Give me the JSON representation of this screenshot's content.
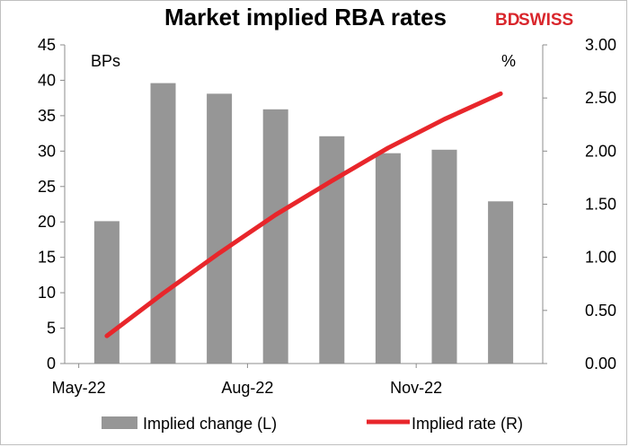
{
  "chart_data": {
    "type": "bar+line",
    "title": "Market implied RBA rates",
    "brand": {
      "prefix": "BD",
      "suffix": "SWISS",
      "color": "#d9262c"
    },
    "left_axis": {
      "unit_label": "BPs",
      "ylim": [
        0,
        45
      ],
      "ticks": [
        0,
        5,
        10,
        15,
        20,
        25,
        30,
        35,
        40,
        45
      ]
    },
    "right_axis": {
      "unit_label": "%",
      "ylim": [
        0,
        3.0
      ],
      "ticks": [
        "0.00",
        "0.50",
        "1.00",
        "1.50",
        "2.00",
        "2.50",
        "3.00"
      ]
    },
    "x_tick_labels": [
      {
        "label": "May-22",
        "index": 0
      },
      {
        "label": "Aug-22",
        "index": 3
      },
      {
        "label": "Nov-22",
        "index": 6
      }
    ],
    "series": [
      {
        "name": "Implied change (L)",
        "kind": "bar",
        "axis": "left",
        "color": "#969696",
        "values": [
          20.1,
          39.6,
          38.1,
          35.9,
          32.1,
          29.7,
          30.2,
          22.9
        ]
      },
      {
        "name": "Implied rate (R)",
        "kind": "line",
        "axis": "right",
        "color": "#e8262b",
        "values": [
          0.26,
          0.66,
          1.04,
          1.4,
          1.72,
          2.03,
          2.3,
          2.54
        ]
      }
    ]
  }
}
